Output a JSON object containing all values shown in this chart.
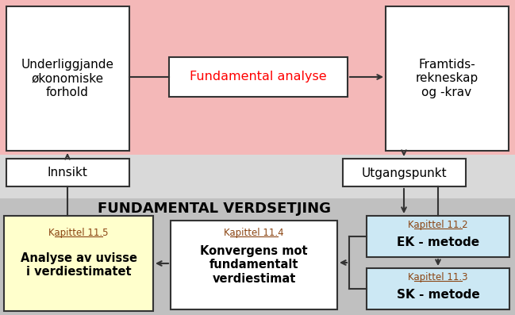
{
  "bg_top": "#f4b8b8",
  "bg_mid": "#d9d9d9",
  "bg_bot": "#c0c0c0",
  "box_white": "#ffffff",
  "box_yellow": "#ffffcc",
  "box_blue": "#cce8f4",
  "border_color": "#333333",
  "red_text": "#ff0000",
  "black_text": "#000000",
  "title_text": "FUNDAMENTAL VERDSETJING",
  "box1_text": "Underliggjande\nøkonomiske\nforhold",
  "box2_text": "Framtids-\nrekneskap\nog -krav",
  "box_mid_text": "Fundamental analyse",
  "innsikt_text": "Innsikt",
  "utgangspunkt_text": "Utgangspunkt",
  "ek_cap": "Kapittel 11.2",
  "ek_main": "EK - metode",
  "sk_cap": "Kapittel 11.3",
  "sk_main": "SK - metode",
  "kap114_cap": "Kapittel 11.4",
  "kap114_main": "Konvergens mot\nfundamentalt\nverdiestimat",
  "kap115_cap": "Kapittel 11.5",
  "kap115_main": "Analyse av uvisse\ni verdiestimatet",
  "kapittel_color": "#8B4513"
}
